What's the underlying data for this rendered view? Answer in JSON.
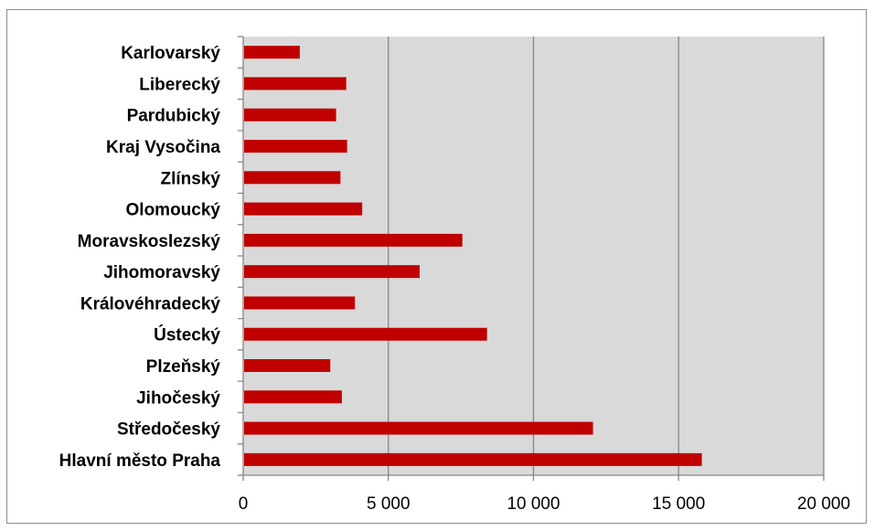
{
  "chart_data": {
    "type": "bar",
    "orientation": "horizontal",
    "categories": [
      "Karlovarský",
      "Liberecký",
      "Pardubický",
      "Kraj Vysočina",
      "Zlínský",
      "Olomoucký",
      "Moravskoslezský",
      "Jihomoravský",
      "Královéhradecký",
      "Ústecký",
      "Plzeňský",
      "Jihočeský",
      "Středočeský",
      "Hlavní město Praha"
    ],
    "values": [
      1950,
      3550,
      3200,
      3580,
      3350,
      4100,
      7550,
      6080,
      3850,
      8400,
      3000,
      3400,
      12050,
      15800
    ],
    "xlim": [
      0,
      20000
    ],
    "xticks": [
      0,
      5000,
      10000,
      15000,
      20000
    ],
    "xtick_labels": [
      "0",
      "5 000",
      "10 000",
      "15 000",
      "20 000"
    ],
    "grid": "vertical major gridlines",
    "legend": "none",
    "colors": {
      "bar": "#c00000",
      "plot_area": "#d9d9d9",
      "gridline": "#868686",
      "axis": "#868686"
    }
  }
}
